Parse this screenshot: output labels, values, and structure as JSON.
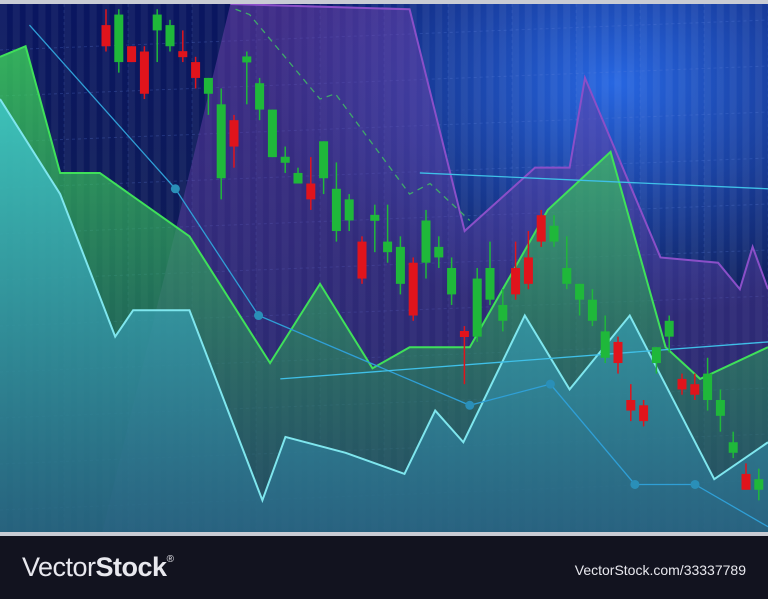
{
  "chart_data": {
    "type": "candlestick",
    "title": "",
    "xlabel": "",
    "ylabel": "",
    "axes_visible": false,
    "grid": true,
    "ylim": [
      0,
      100
    ],
    "xlim": [
      0,
      60
    ],
    "colors": {
      "background_top": "#0b1a6e",
      "background_bottom": "#102052",
      "glow": "#1e5fe0",
      "up": "#1fb83a",
      "down": "#e0141c",
      "teal_area": "#3fb7c4",
      "green_area": "#3fe05a",
      "purple_area": "#8a4fc8",
      "line": "#2f9fd6"
    },
    "candles": [
      {
        "o": 96,
        "c": 92,
        "h": 99,
        "l": 91
      },
      {
        "o": 89,
        "c": 98,
        "h": 99,
        "l": 87
      },
      {
        "o": 92,
        "c": 89,
        "h": 92,
        "l": 89
      },
      {
        "o": 91,
        "c": 83,
        "h": 92,
        "l": 82
      },
      {
        "o": 95,
        "c": 98,
        "h": 99,
        "l": 89
      },
      {
        "o": 92,
        "c": 96,
        "h": 97,
        "l": 91
      },
      {
        "o": 91,
        "c": 90,
        "h": 95,
        "l": 89
      },
      {
        "o": 89,
        "c": 86,
        "h": 90,
        "l": 84
      },
      {
        "o": 83,
        "c": 86,
        "h": 86,
        "l": 79
      },
      {
        "o": 67,
        "c": 81,
        "h": 84,
        "l": 63
      },
      {
        "o": 78,
        "c": 73,
        "h": 79,
        "l": 69
      },
      {
        "o": 89,
        "c": 90,
        "h": 91,
        "l": 81
      },
      {
        "o": 80,
        "c": 85,
        "h": 86,
        "l": 78
      },
      {
        "o": 71,
        "c": 80,
        "h": 80,
        "l": 71
      },
      {
        "o": 70,
        "c": 71,
        "h": 73,
        "l": 68
      },
      {
        "o": 66,
        "c": 68,
        "h": 69,
        "l": 66
      },
      {
        "o": 66,
        "c": 63,
        "h": 71,
        "l": 61
      },
      {
        "o": 67,
        "c": 74,
        "h": 74,
        "l": 64
      },
      {
        "o": 57,
        "c": 65,
        "h": 70,
        "l": 55
      },
      {
        "o": 59,
        "c": 63,
        "h": 64,
        "l": 57
      },
      {
        "o": 55,
        "c": 48,
        "h": 56,
        "l": 47
      },
      {
        "o": 59,
        "c": 60,
        "h": 62,
        "l": 53
      },
      {
        "o": 53,
        "c": 55,
        "h": 62,
        "l": 51
      },
      {
        "o": 47,
        "c": 54,
        "h": 56,
        "l": 45
      },
      {
        "o": 51,
        "c": 41,
        "h": 52,
        "l": 40
      },
      {
        "o": 51,
        "c": 59,
        "h": 61,
        "l": 48
      },
      {
        "o": 52,
        "c": 54,
        "h": 56,
        "l": 50
      },
      {
        "o": 45,
        "c": 50,
        "h": 52,
        "l": 43
      },
      {
        "o": 38,
        "c": 37,
        "h": 39,
        "l": 28
      },
      {
        "o": 37,
        "c": 48,
        "h": 50,
        "l": 36
      },
      {
        "o": 44,
        "c": 50,
        "h": 55,
        "l": 43
      },
      {
        "o": 40,
        "c": 43,
        "h": 46,
        "l": 38
      },
      {
        "o": 50,
        "c": 45,
        "h": 55,
        "l": 44
      },
      {
        "o": 52,
        "c": 47,
        "h": 57,
        "l": 46
      },
      {
        "o": 60,
        "c": 55,
        "h": 61,
        "l": 54
      },
      {
        "o": 55,
        "c": 58,
        "h": 60,
        "l": 54
      },
      {
        "o": 47,
        "c": 50,
        "h": 56,
        "l": 46
      },
      {
        "o": 44,
        "c": 47,
        "h": 47,
        "l": 41
      },
      {
        "o": 40,
        "c": 44,
        "h": 46,
        "l": 39
      },
      {
        "o": 33,
        "c": 38,
        "h": 41,
        "l": 32
      },
      {
        "o": 36,
        "c": 32,
        "h": 37,
        "l": 30
      },
      {
        "o": 25,
        "c": 23,
        "h": 28,
        "l": 21
      },
      {
        "o": 24,
        "c": 21,
        "h": 25,
        "l": 20
      },
      {
        "o": 32,
        "c": 35,
        "h": 35,
        "l": 30
      },
      {
        "o": 37,
        "c": 40,
        "h": 41,
        "l": 34
      },
      {
        "o": 29,
        "c": 27,
        "h": 30,
        "l": 26
      },
      {
        "o": 28,
        "c": 26,
        "h": 30,
        "l": 25
      },
      {
        "o": 25,
        "c": 30,
        "h": 33,
        "l": 23
      },
      {
        "o": 22,
        "c": 25,
        "h": 27,
        "l": 19
      },
      {
        "o": 15,
        "c": 17,
        "h": 19,
        "l": 14
      },
      {
        "o": 11,
        "c": 8,
        "h": 13,
        "l": 8
      },
      {
        "o": 8,
        "c": 10,
        "h": 12,
        "l": 6
      }
    ],
    "areas": [
      {
        "id": "purple",
        "points": [
          [
            18,
            100
          ],
          [
            32,
            99
          ],
          [
            36.3,
            57
          ],
          [
            41.8,
            69
          ],
          [
            44.5,
            69
          ],
          [
            45.7,
            86
          ],
          [
            51.6,
            52
          ],
          [
            56.1,
            51
          ],
          [
            57.8,
            46
          ],
          [
            58.8,
            54
          ],
          [
            60,
            46
          ]
        ]
      },
      {
        "id": "green",
        "points": [
          [
            0,
            90
          ],
          [
            2,
            92
          ],
          [
            4.7,
            68
          ],
          [
            7.8,
            68
          ],
          [
            14.8,
            56
          ],
          [
            21.1,
            32
          ],
          [
            25,
            47
          ],
          [
            29.1,
            31
          ],
          [
            32,
            35
          ],
          [
            36.7,
            35
          ],
          [
            42.8,
            61
          ],
          [
            47.7,
            72
          ],
          [
            52,
            35
          ],
          [
            54.7,
            29
          ],
          [
            60,
            35
          ]
        ]
      },
      {
        "id": "teal",
        "points": [
          [
            0,
            82
          ],
          [
            4.7,
            64
          ],
          [
            9,
            37
          ],
          [
            10.4,
            42
          ],
          [
            14.8,
            42
          ],
          [
            20.5,
            6
          ],
          [
            22.3,
            18
          ],
          [
            27,
            15
          ],
          [
            31.6,
            11
          ],
          [
            34,
            23
          ],
          [
            36.2,
            17
          ],
          [
            41,
            41
          ],
          [
            44.5,
            27
          ],
          [
            49.2,
            41
          ],
          [
            55.8,
            10
          ],
          [
            60,
            17
          ]
        ]
      }
    ],
    "lines": [
      {
        "id": "trend-dots",
        "points": [
          [
            2.3,
            96
          ],
          [
            13.7,
            65
          ],
          [
            20.2,
            41
          ],
          [
            36.7,
            24
          ],
          [
            43,
            28
          ],
          [
            49.6,
            9
          ],
          [
            54.3,
            9
          ],
          [
            60,
            1
          ]
        ],
        "markers": [
          1,
          2,
          3,
          4,
          5,
          6
        ]
      },
      {
        "id": "level-low",
        "points": [
          [
            21.9,
            29
          ],
          [
            60,
            36
          ]
        ]
      },
      {
        "id": "level-high",
        "points": [
          [
            32.8,
            68
          ],
          [
            60,
            65
          ]
        ]
      },
      {
        "id": "dashed",
        "points": [
          [
            18.4,
            99
          ],
          [
            19.5,
            98
          ],
          [
            25,
            82
          ],
          [
            26.2,
            83
          ],
          [
            32,
            64
          ],
          [
            33.6,
            66
          ],
          [
            36.7,
            59
          ]
        ],
        "dashed": true
      }
    ]
  },
  "footer": {
    "logo_light": "Vector",
    "logo_bold": "Stock",
    "logo_mark": "®",
    "image_id": "VectorStock.com/33337789"
  }
}
